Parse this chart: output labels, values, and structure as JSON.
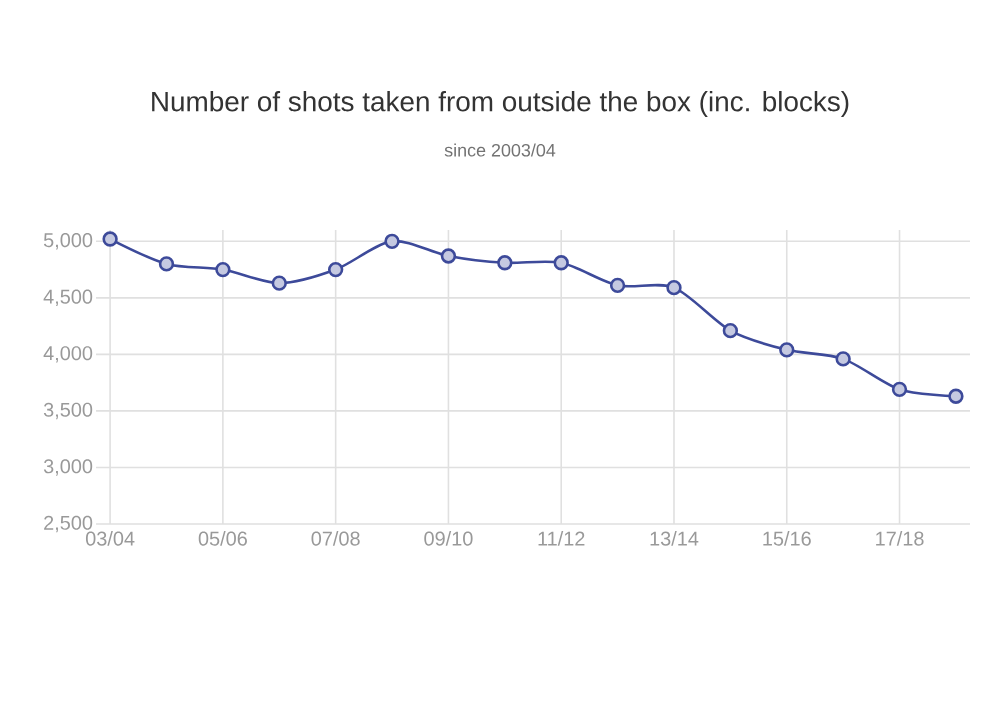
{
  "chart_data": {
    "type": "line",
    "title": "Number of shots taken from outside the box (inc. blocks)",
    "subtitle": "since 2003/04",
    "categories": [
      "03/04",
      null,
      "05/06",
      null,
      "07/08",
      null,
      "09/10",
      null,
      "11/12",
      null,
      "13/14",
      null,
      "15/16",
      null,
      "17/18",
      null
    ],
    "series": [
      {
        "color": "#3d4a9a",
        "values": [
          5020,
          4800,
          4750,
          4630,
          4750,
          5000,
          4870,
          4810,
          4810,
          4610,
          4590,
          4210,
          4040,
          3960,
          3690,
          3630
        ]
      }
    ],
    "ylim": [
      2500,
      5100
    ],
    "yticks": [
      {
        "value": 2500,
        "label": "2,500"
      },
      {
        "value": 3000,
        "label": "3,000"
      },
      {
        "value": 3500,
        "label": "3,500"
      },
      {
        "value": 4000,
        "label": "4,000"
      },
      {
        "value": 4500,
        "label": "4,500"
      },
      {
        "value": 5000,
        "label": "5,000"
      }
    ],
    "grid": true,
    "marker": "circle",
    "line_style": "solid"
  }
}
